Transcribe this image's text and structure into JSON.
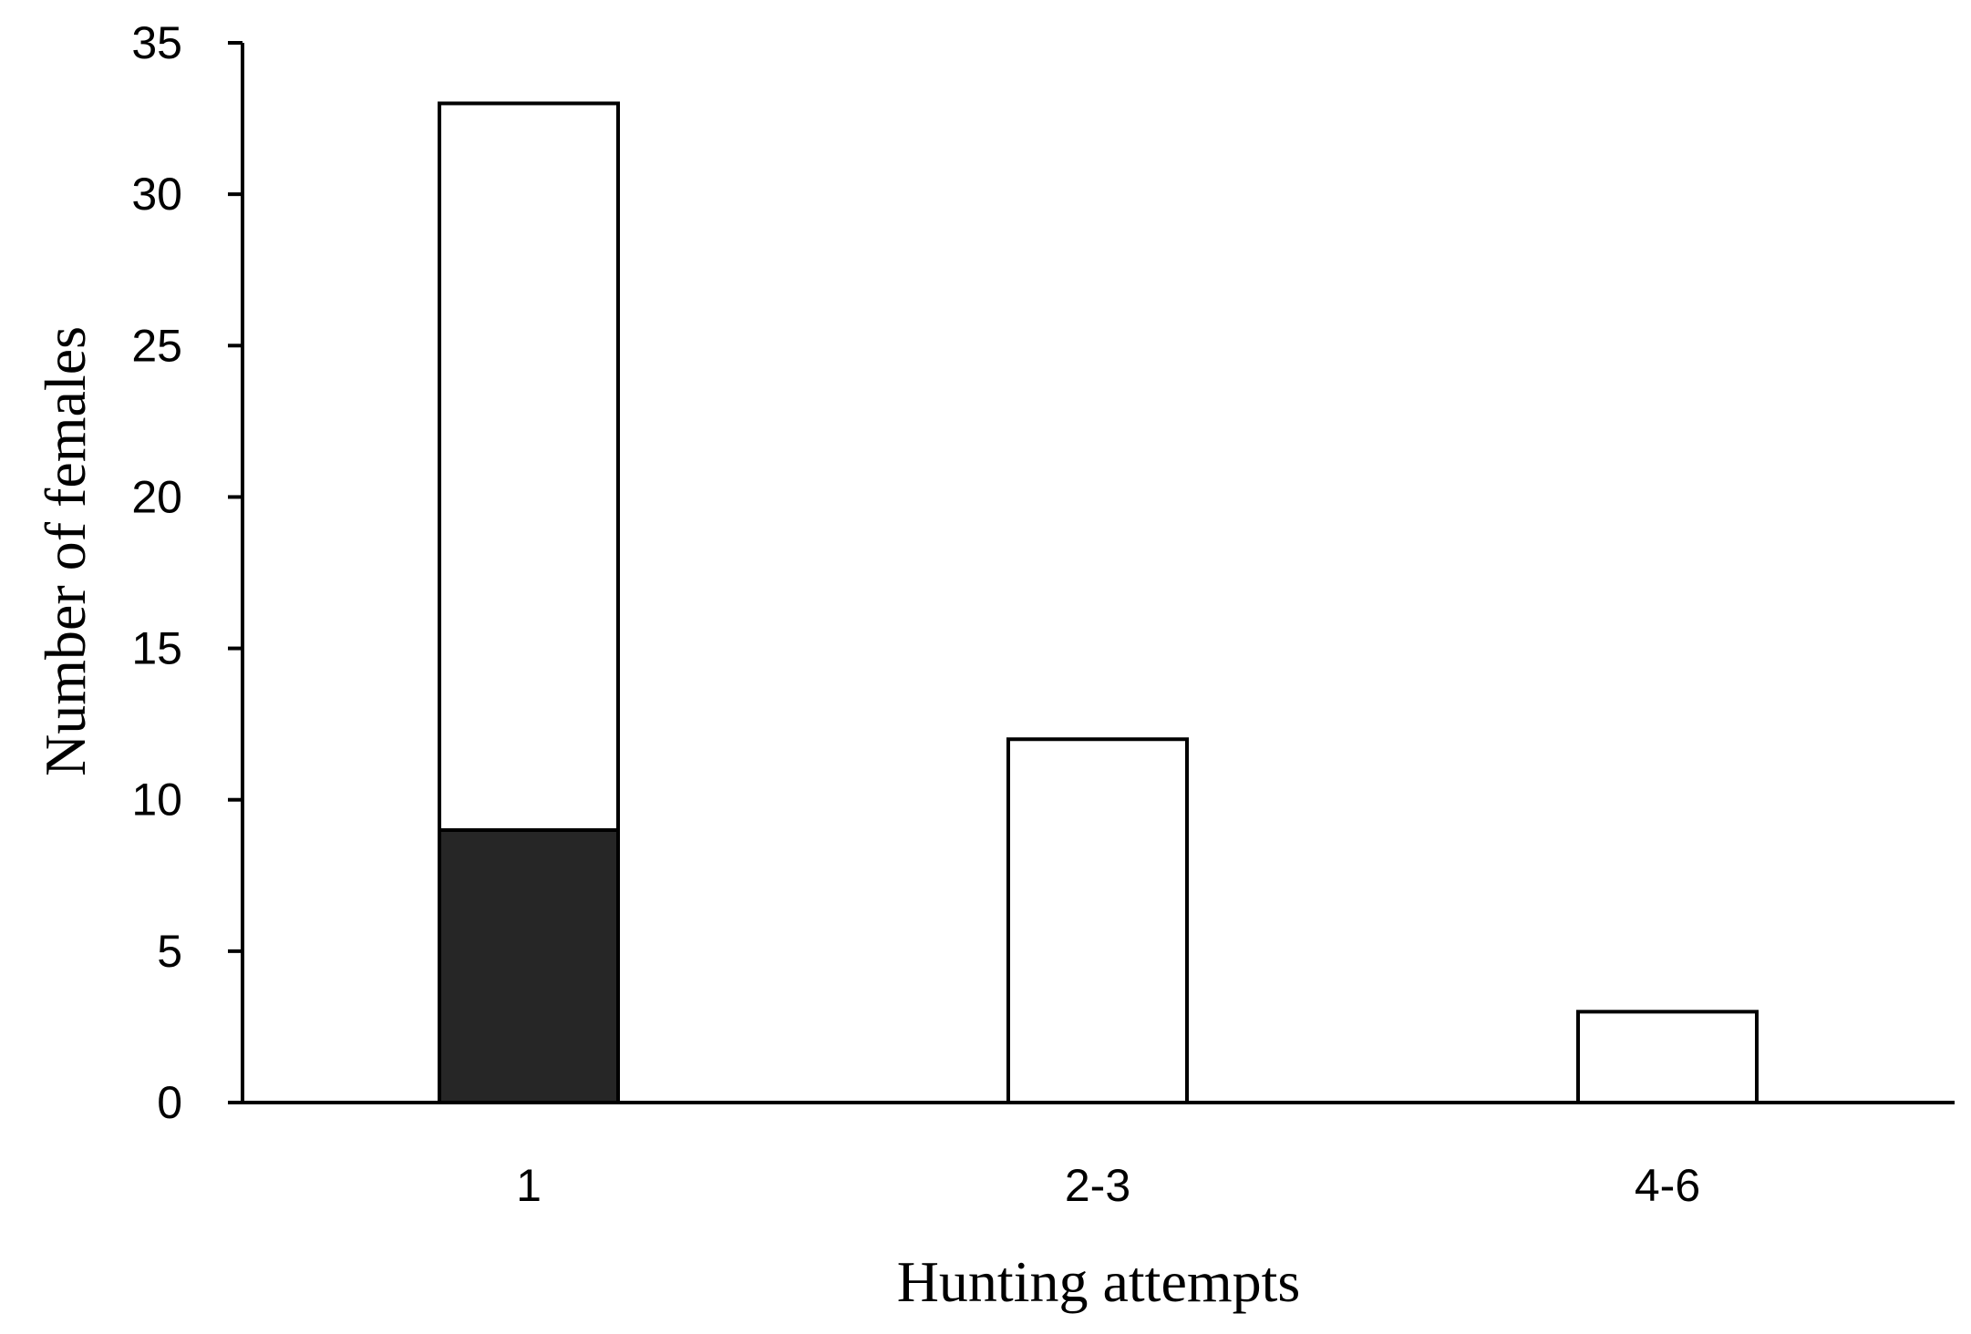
{
  "chart_data": {
    "type": "bar",
    "stacked": true,
    "title": "",
    "xlabel": "Hunting attempts",
    "ylabel": "Number of females",
    "categories": [
      "1",
      "2-3",
      "4-6"
    ],
    "series": [
      {
        "values": [
          9,
          0,
          0
        ],
        "color": "#262626"
      },
      {
        "values": [
          24,
          12,
          3
        ],
        "color": "#ffffff"
      }
    ],
    "ylim": [
      0,
      35
    ],
    "yticks": [
      0,
      5,
      10,
      15,
      20,
      25,
      30,
      35
    ],
    "grid": false,
    "legend": "none",
    "colors": {
      "axis": "#000000",
      "bar_outline": "#000000"
    }
  }
}
